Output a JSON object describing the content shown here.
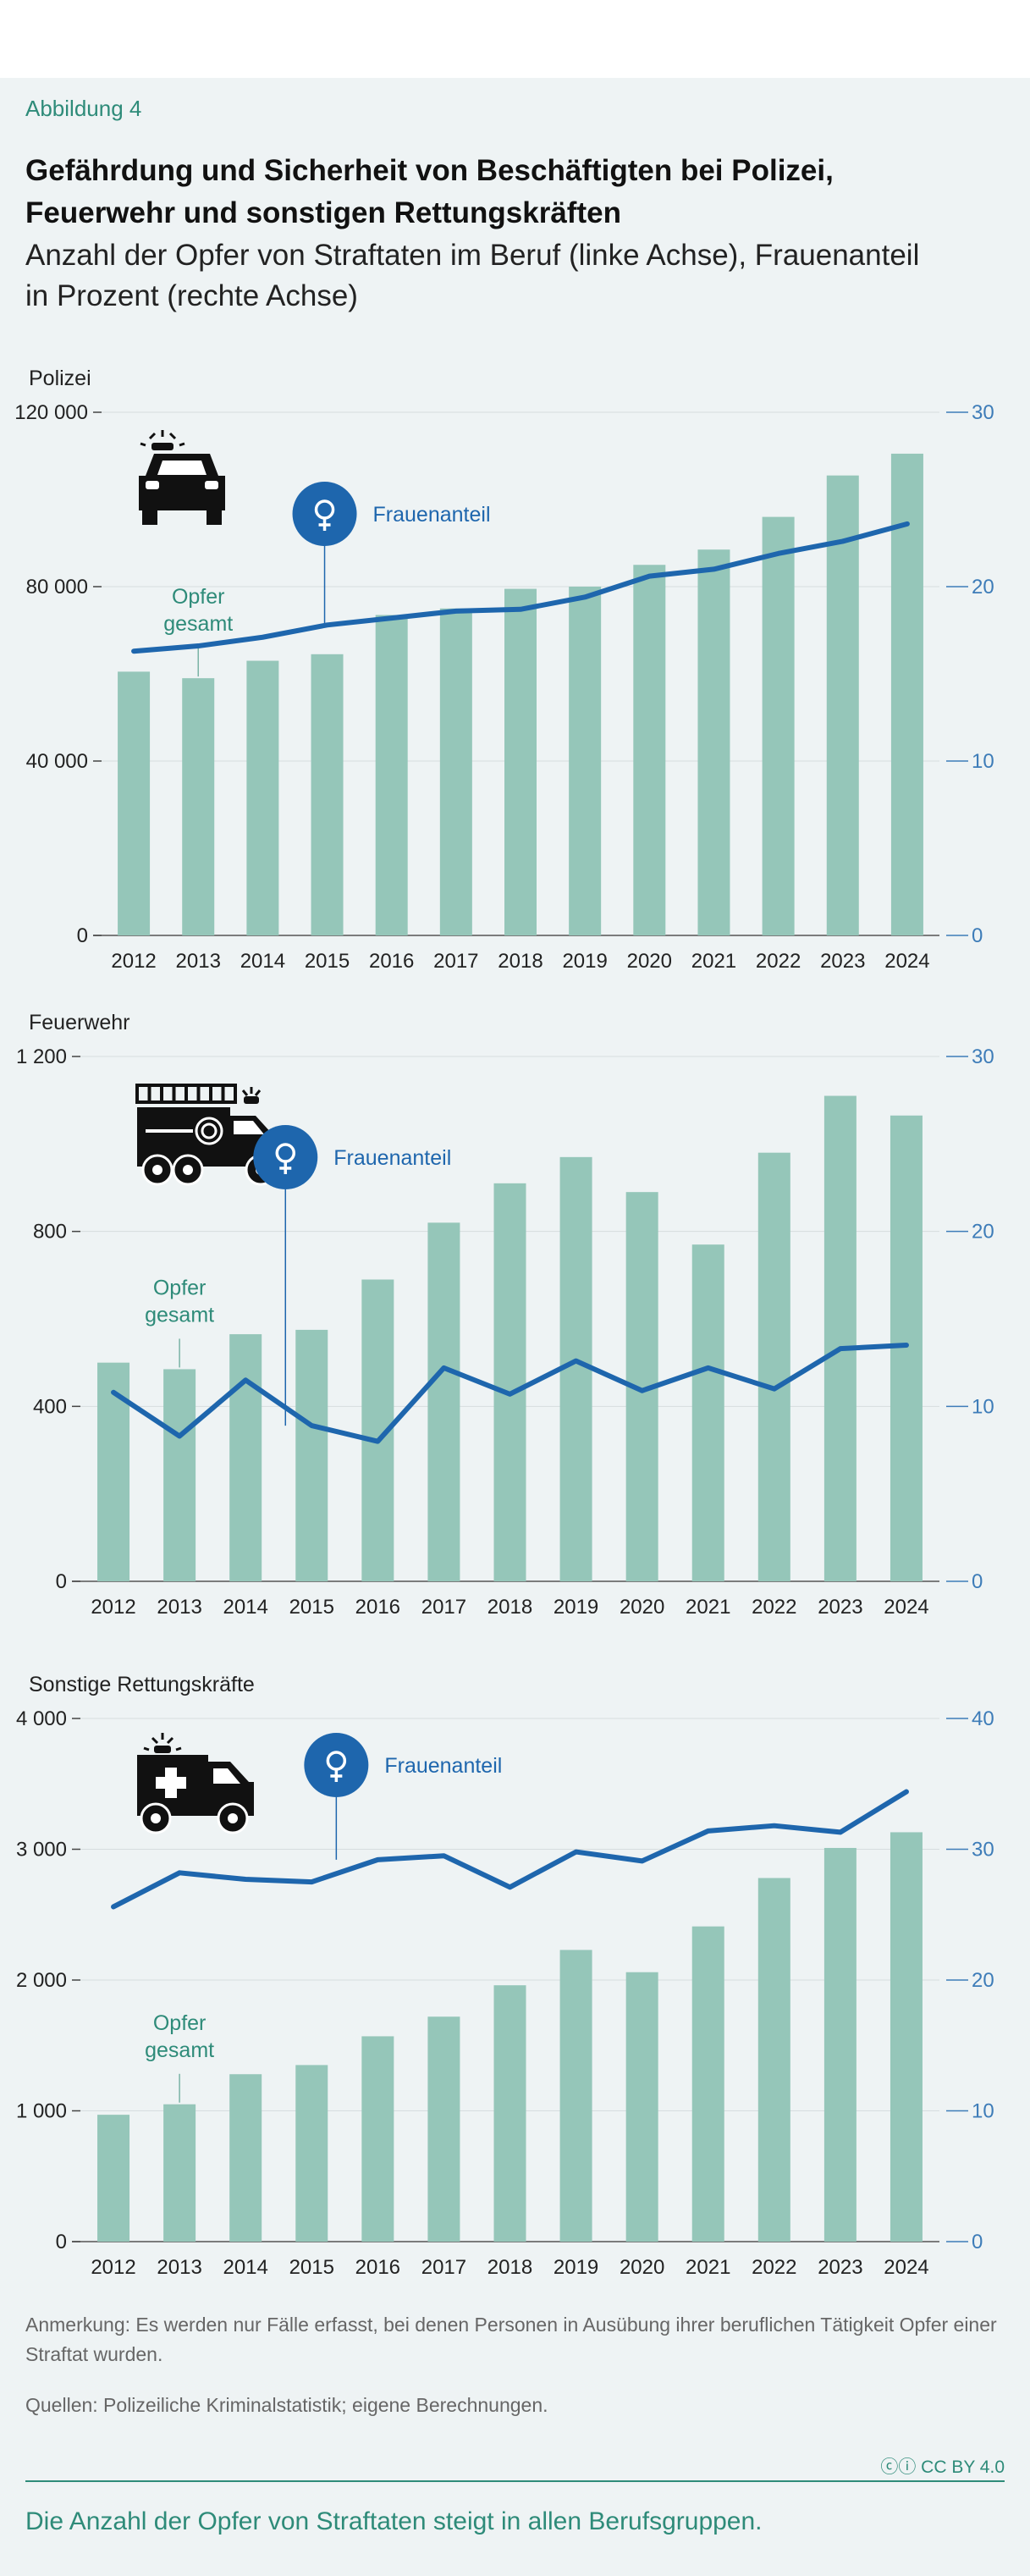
{
  "figure_label": "Abbildung 4",
  "title_lines": [
    "Gefährdung und Sicherheit von Beschäftigten bei Polizei,",
    "Feuerwehr und sonstigen Rettungskräften"
  ],
  "subtitle_lines": [
    "Anzahl der Opfer von Straftaten im Beruf (linke Achse), Frauenanteil",
    "in Prozent (rechte Achse)"
  ],
  "chart_data": [
    {
      "type": "bar+line",
      "panel_title": "Polizei",
      "icon": "police-car-icon",
      "categories": [
        "2012",
        "2013",
        "2014",
        "2015",
        "2016",
        "2017",
        "2018",
        "2019",
        "2020",
        "2021",
        "2022",
        "2023",
        "2024"
      ],
      "series": [
        {
          "name": "Opfer gesamt",
          "type": "bar",
          "axis": "left",
          "values": [
            60500,
            59000,
            63000,
            64500,
            73500,
            75000,
            79500,
            80000,
            85000,
            88500,
            96000,
            105500,
            110500
          ]
        },
        {
          "name": "Frauenanteil",
          "type": "line",
          "axis": "right",
          "values": [
            16.3,
            16.6,
            17.1,
            17.8,
            18.2,
            18.6,
            18.7,
            19.4,
            20.6,
            21.0,
            21.9,
            22.6,
            23.6
          ]
        }
      ],
      "y_left": {
        "min": 0,
        "max": 120000,
        "ticks": [
          0,
          40000,
          80000,
          120000
        ],
        "tick_labels": [
          "0",
          "40 000",
          "80 000",
          "120 000"
        ]
      },
      "y_right": {
        "min": 0,
        "max": 30,
        "ticks": [
          0,
          10,
          20,
          30
        ],
        "tick_labels": [
          "0",
          "10",
          "20",
          "30"
        ]
      },
      "annotations": {
        "bar_label": [
          "Opfer",
          "gesamt"
        ],
        "bar_label_index": 1,
        "line_label": "Frauenanteil",
        "line_label_index": 3
      }
    },
    {
      "type": "bar+line",
      "panel_title": "Feuerwehr",
      "icon": "fire-truck-icon",
      "categories": [
        "2012",
        "2013",
        "2014",
        "2015",
        "2016",
        "2017",
        "2018",
        "2019",
        "2020",
        "2021",
        "2022",
        "2023",
        "2024"
      ],
      "series": [
        {
          "name": "Opfer gesamt",
          "type": "bar",
          "axis": "left",
          "values": [
            500,
            485,
            565,
            575,
            690,
            820,
            910,
            970,
            890,
            770,
            980,
            1110,
            1065
          ]
        },
        {
          "name": "Frauenanteil",
          "type": "line",
          "axis": "right",
          "values": [
            10.8,
            8.3,
            11.5,
            8.9,
            8.0,
            12.2,
            10.7,
            12.6,
            10.9,
            12.2,
            11.0,
            13.3,
            13.5
          ]
        }
      ],
      "y_left": {
        "min": 0,
        "max": 1200,
        "ticks": [
          0,
          400,
          800,
          1200
        ],
        "tick_labels": [
          "0",
          "400",
          "800",
          "1 200"
        ]
      },
      "y_right": {
        "min": 0,
        "max": 30,
        "ticks": [
          0,
          10,
          20,
          30
        ],
        "tick_labels": [
          "0",
          "10",
          "20",
          "30"
        ]
      },
      "annotations": {
        "bar_label": [
          "Opfer",
          "gesamt"
        ],
        "bar_label_index": 1,
        "line_label": "Frauenanteil",
        "line_label_index": 3
      }
    },
    {
      "type": "bar+line",
      "panel_title": "Sonstige Rettungskräfte",
      "icon": "ambulance-icon",
      "categories": [
        "2012",
        "2013",
        "2014",
        "2015",
        "2016",
        "2017",
        "2018",
        "2019",
        "2020",
        "2021",
        "2022",
        "2023",
        "2024"
      ],
      "series": [
        {
          "name": "Opfer gesamt",
          "type": "bar",
          "axis": "left",
          "values": [
            970,
            1050,
            1280,
            1350,
            1570,
            1720,
            1960,
            2230,
            2060,
            2410,
            2780,
            3010,
            3130
          ]
        },
        {
          "name": "Frauenanteil",
          "type": "line",
          "axis": "right",
          "values": [
            25.6,
            28.2,
            27.7,
            27.5,
            29.2,
            29.5,
            27.1,
            29.8,
            29.1,
            31.4,
            31.8,
            31.3,
            34.4
          ]
        }
      ],
      "y_left": {
        "min": 0,
        "max": 4000,
        "ticks": [
          0,
          1000,
          2000,
          3000,
          4000
        ],
        "tick_labels": [
          "0",
          "1 000",
          "2 000",
          "3 000",
          "4 000"
        ]
      },
      "y_right": {
        "min": 0,
        "max": 40,
        "ticks": [
          0,
          10,
          20,
          30,
          40
        ],
        "tick_labels": [
          "0",
          "10",
          "20",
          "30",
          "40"
        ]
      },
      "annotations": {
        "bar_label": [
          "Opfer",
          "gesamt"
        ],
        "bar_label_index": 1,
        "line_label": "Frauenanteil",
        "line_label_index": 4
      }
    }
  ],
  "note": [
    "Anmerkung: Es werden nur Fälle erfasst, bei denen Personen in Ausübung ihrer beruflichen Tätigkeit Opfer einer",
    "Straftat wurden."
  ],
  "source": "Quellen: Polizeiliche Kriminalstatistik; eigene Berechnungen.",
  "license": "CC BY 4.0",
  "takeaway": "Die Anzahl der Opfer von Straftaten steigt in allen Berufsgruppen.",
  "colors": {
    "bar": "#95c6b9",
    "line": "#1e66ad",
    "axis_right": "#3d7cb8",
    "accent": "#2e8b79",
    "grid": "#d6dcde"
  }
}
